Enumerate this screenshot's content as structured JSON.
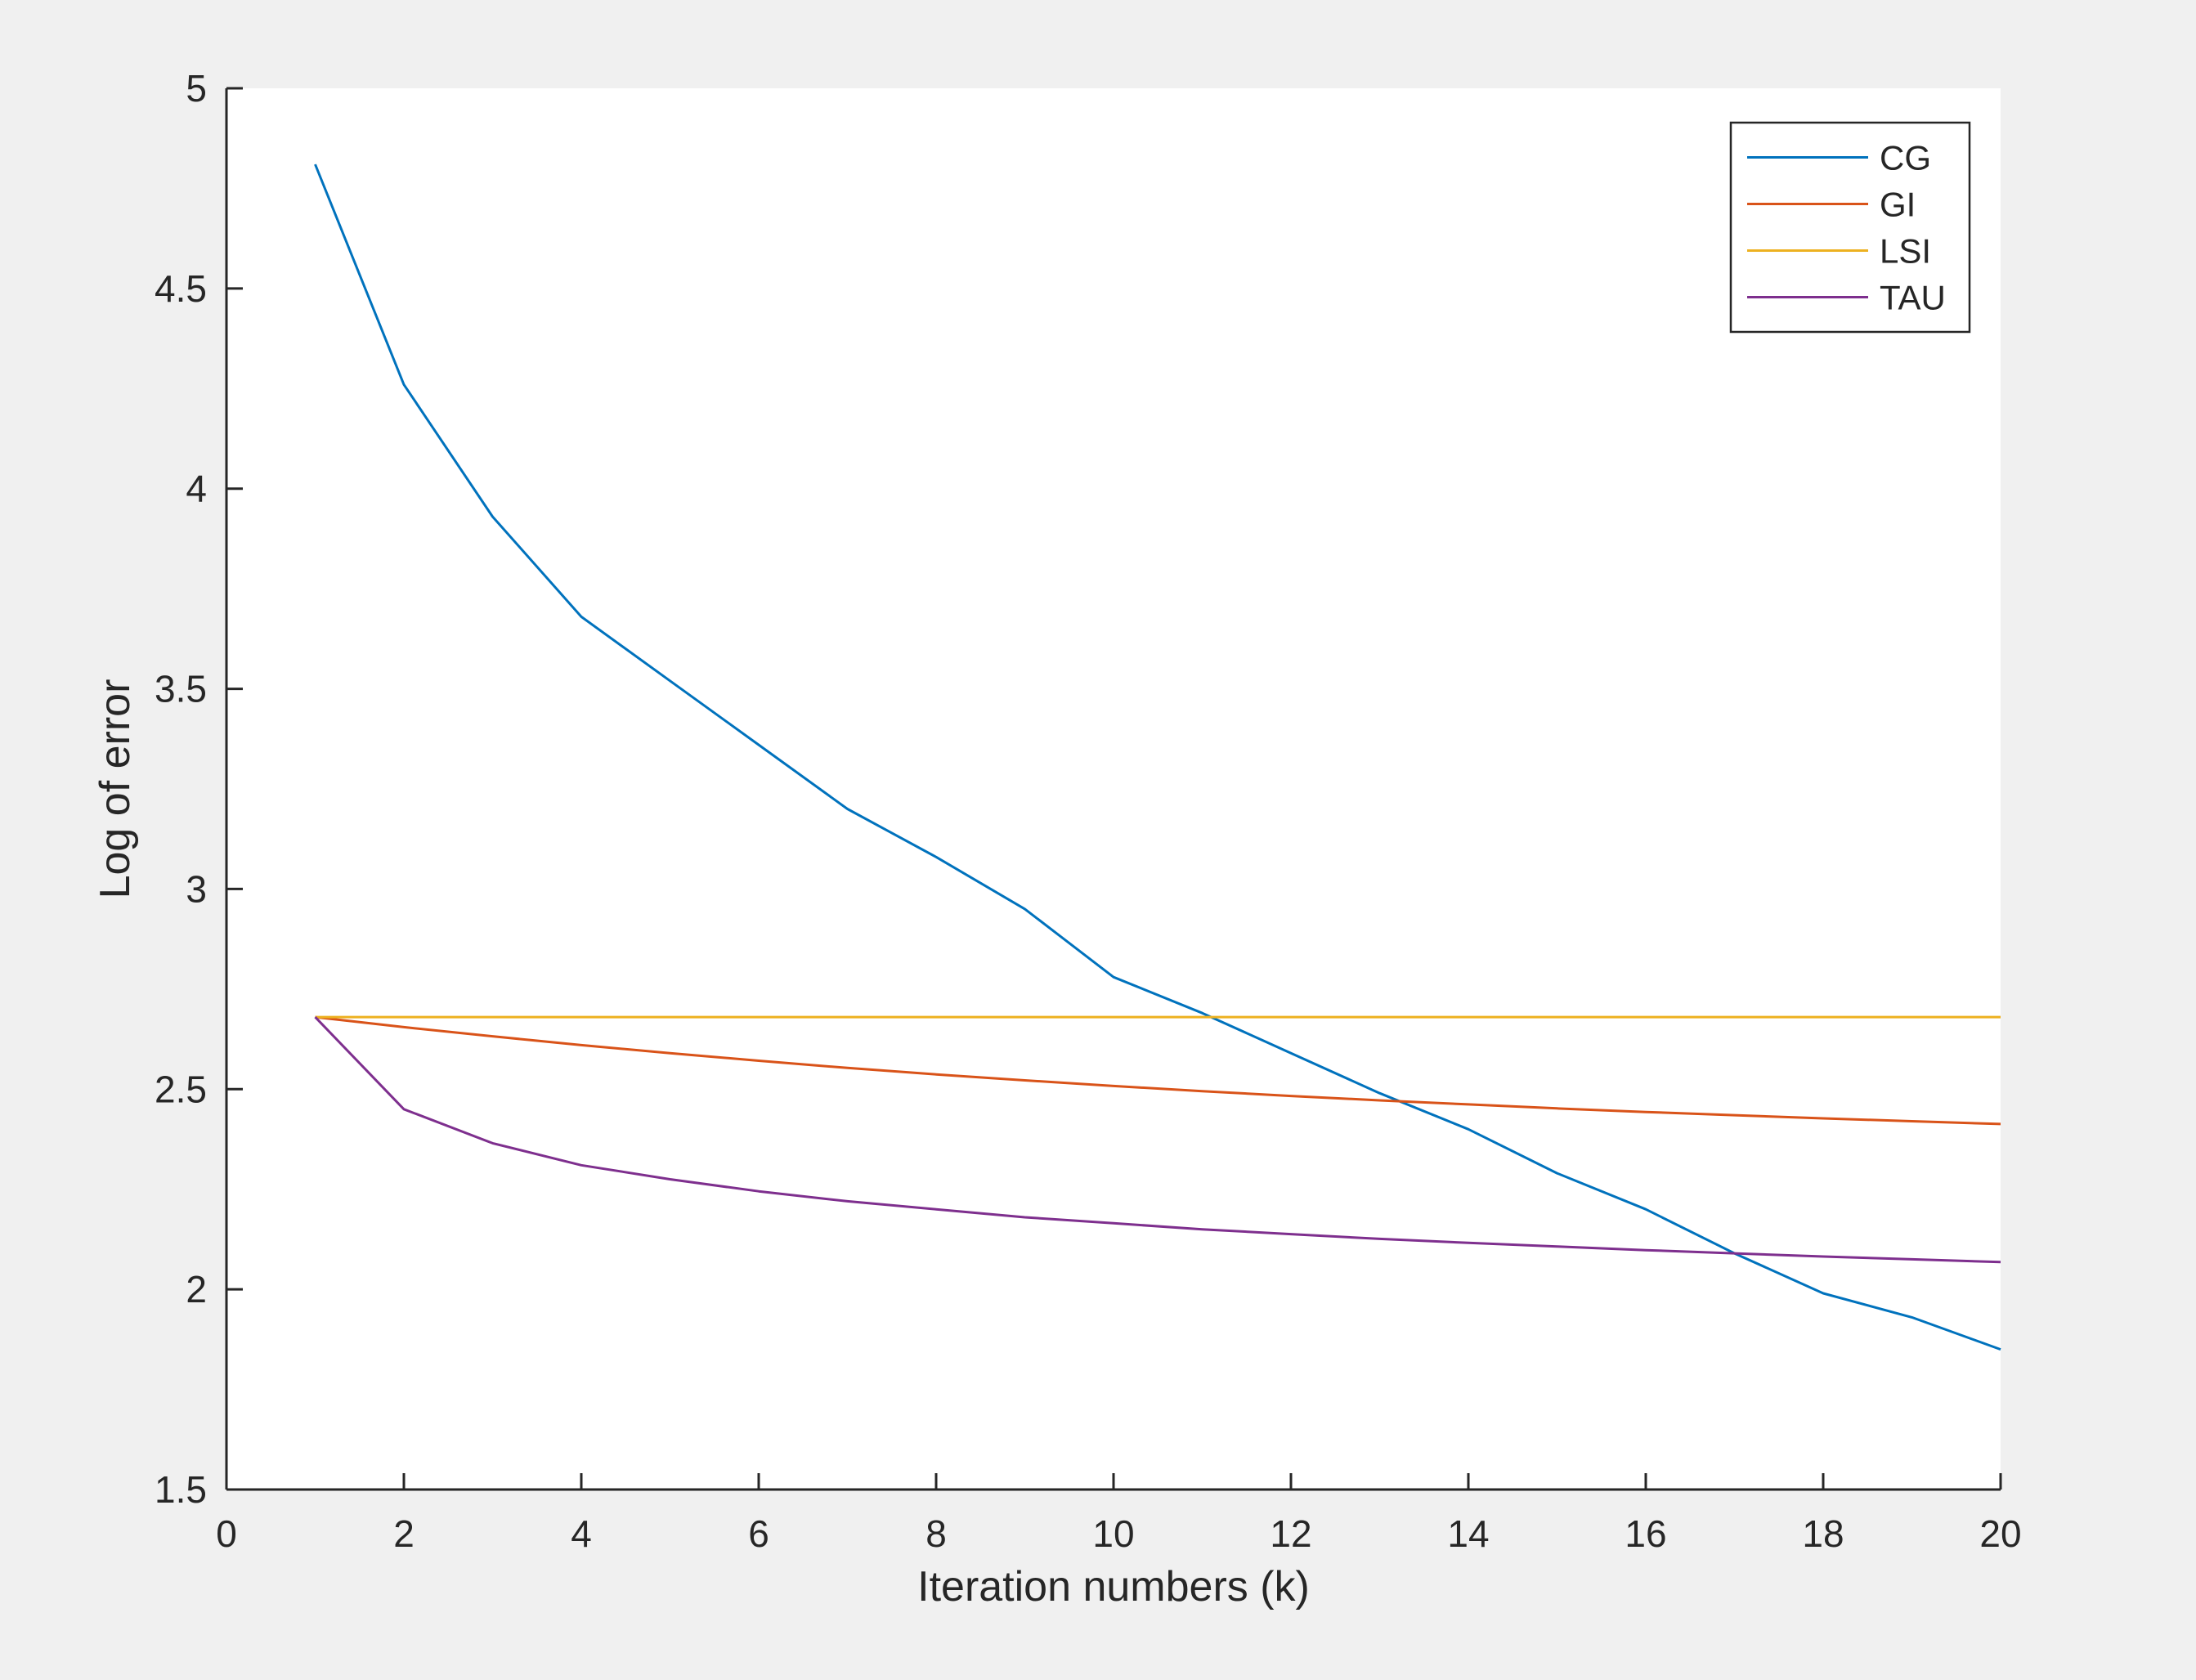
{
  "colors": {
    "figure_background": "#f0f0f0",
    "axes_background": "#ffffff",
    "axis_color": "#262626"
  },
  "chart_data": {
    "type": "line",
    "title": "",
    "xlabel": "Iteration numbers (k)",
    "ylabel": "Log of error",
    "xlim": [
      0,
      20
    ],
    "ylim": [
      1.5,
      5
    ],
    "xticks": [
      0,
      2,
      4,
      6,
      8,
      10,
      12,
      14,
      16,
      18,
      20
    ],
    "yticks": [
      1.5,
      2,
      2.5,
      3,
      3.5,
      4,
      4.5,
      5
    ],
    "xtick_labels": [
      "0",
      "2",
      "4",
      "6",
      "8",
      "10",
      "12",
      "14",
      "16",
      "18",
      "20"
    ],
    "ytick_labels": [
      "1.5",
      "2",
      "2.5",
      "3",
      "3.5",
      "4",
      "4.5",
      "5"
    ],
    "grid": false,
    "legend_position": "top-right",
    "x": [
      1,
      2,
      3,
      4,
      5,
      6,
      7,
      8,
      9,
      10,
      11,
      12,
      13,
      14,
      15,
      16,
      17,
      18,
      19,
      20
    ],
    "series": [
      {
        "name": "CG",
        "color": "#0072BD",
        "values": [
          4.81,
          4.26,
          3.93,
          3.68,
          3.52,
          3.36,
          3.2,
          3.08,
          2.95,
          2.78,
          2.69,
          2.59,
          2.49,
          2.4,
          2.29,
          2.2,
          2.09,
          1.99,
          1.93,
          1.85
        ]
      },
      {
        "name": "GI",
        "color": "#D95319",
        "values": [
          2.68,
          2.655,
          2.632,
          2.61,
          2.59,
          2.571,
          2.553,
          2.537,
          2.522,
          2.508,
          2.495,
          2.483,
          2.472,
          2.462,
          2.452,
          2.443,
          2.435,
          2.427,
          2.42,
          2.413
        ]
      },
      {
        "name": "LSI",
        "color": "#EDB120",
        "values": [
          2.68,
          2.68,
          2.68,
          2.68,
          2.68,
          2.68,
          2.68,
          2.68,
          2.68,
          2.68,
          2.68,
          2.68,
          2.68,
          2.68,
          2.68,
          2.68,
          2.68,
          2.68,
          2.68,
          2.68
        ]
      },
      {
        "name": "TAU",
        "color": "#7E2F8E",
        "values": [
          2.68,
          2.45,
          2.365,
          2.31,
          2.275,
          2.245,
          2.22,
          2.2,
          2.18,
          2.165,
          2.15,
          2.138,
          2.126,
          2.116,
          2.107,
          2.098,
          2.09,
          2.082,
          2.075,
          2.068
        ]
      }
    ]
  }
}
